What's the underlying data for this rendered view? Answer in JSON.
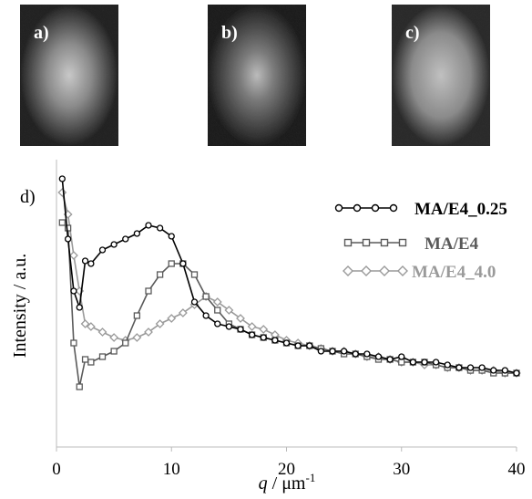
{
  "panels": [
    "a)",
    "b)",
    "c)"
  ],
  "chart_data": {
    "type": "line",
    "panel": "d)",
    "xlabel": {
      "symbol": "q",
      "unit": " / μm",
      "exponent": "-1"
    },
    "ylabel": "Intensity / a.u.",
    "x": [
      0.5,
      1,
      1.5,
      2,
      2.5,
      3,
      4,
      5,
      6,
      7,
      8,
      9,
      10,
      11,
      12,
      13,
      14,
      15,
      16,
      17,
      18,
      19,
      20,
      21,
      22,
      23,
      24,
      25,
      26,
      27,
      28,
      29,
      30,
      31,
      32,
      33,
      34,
      35,
      36,
      37,
      38,
      39,
      40
    ],
    "series": [
      {
        "name": "MA/E4_0.25",
        "color": "#000000",
        "marker": "circle",
        "values": [
          98,
          76,
          57,
          51,
          68,
          67,
          72,
          74,
          76,
          78,
          81,
          80,
          77,
          67,
          53,
          48,
          45,
          44,
          43,
          41,
          40,
          39,
          38,
          37,
          37,
          35,
          35,
          35,
          34,
          34,
          33,
          32,
          33,
          31,
          31,
          31,
          30,
          29,
          29,
          29,
          28,
          28,
          27
        ]
      },
      {
        "name": "MA/E4",
        "color": "#5a5a5a",
        "marker": "square",
        "values": [
          82,
          80,
          38,
          22,
          32,
          31,
          33,
          35,
          38,
          48,
          57,
          63,
          67,
          67,
          63,
          55,
          50,
          45,
          43,
          41,
          40,
          39,
          38,
          37,
          37,
          36,
          35,
          34,
          34,
          33,
          32,
          32,
          31,
          31,
          31,
          30,
          29,
          29,
          28,
          28,
          27,
          27,
          27
        ]
      },
      {
        "name": "MA/E4_4.0",
        "color": "#9a9a9a",
        "marker": "diamond",
        "values": [
          93,
          85,
          70,
          57,
          45,
          44,
          42,
          40,
          39,
          40,
          42,
          45,
          47,
          49,
          52,
          55,
          53,
          50,
          47,
          44,
          43,
          41,
          39,
          38,
          37,
          36,
          35,
          35,
          34,
          33,
          33,
          32,
          31,
          31,
          30,
          30,
          29,
          29,
          28,
          28,
          28,
          27,
          27
        ]
      }
    ],
    "xlim": [
      0,
      40
    ],
    "xticks": [
      0,
      10,
      20,
      30,
      40
    ],
    "ylim": [
      0,
      100
    ]
  }
}
